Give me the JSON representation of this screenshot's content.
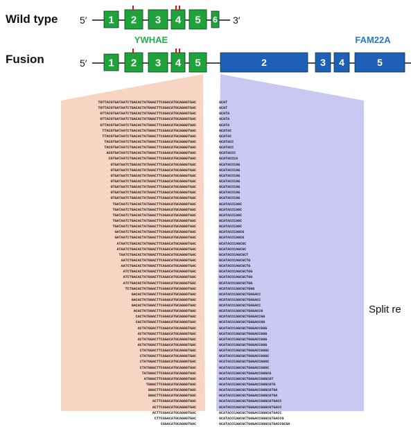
{
  "rows": {
    "wild_type": {
      "label": "Wild type",
      "five_prime": "5′",
      "three_prime": "3′",
      "exons": [
        "1",
        "2",
        "3",
        "4",
        "5",
        "6"
      ]
    },
    "fusion": {
      "label": "Fusion",
      "five_prime": "5′",
      "ywhae_exons": [
        "1",
        "2",
        "3",
        "4",
        "5"
      ],
      "fam22a_exons": [
        "2",
        "3",
        "4",
        "5"
      ]
    }
  },
  "genes": {
    "left": "YWHAE",
    "right": "FAM22A"
  },
  "side_label": "Split re",
  "colors": {
    "exon_green": "#1fa23a",
    "exon_blue": "#1f5fb8",
    "mutation_red": "#e0101a",
    "left_fan": "#f7d5c2",
    "right_fan": "#c9c8f3",
    "gene_green_text": "#24b04a",
    "gene_blue_text": "#2a78c8"
  },
  "reads": [
    [
      "TGTTACGTGATAATCTGACACTATGGACTTCAGACATGCAGGGTGAC",
      "GCAT"
    ],
    [
      "TGTTACGTGATAATCTGACACTATGGACTTCAGACATGCAGGGTGAC",
      "GCAT"
    ],
    [
      "GTTACGTGATAATCTGACACTATGGACTTCAGACATGCAGGGTGAC",
      "GCATA"
    ],
    [
      "GTTACGTGATAATCTGACACTATGGACTTCAGACATGCAGGGTGAC",
      "GCATA"
    ],
    [
      "GTTACGTGATAATCTGACACTATGGACTTCAGACATGCAGGGTGAC",
      "GCATA"
    ],
    [
      "TTACGTGATAATCTGACACTATGGACTTCAGACATGCAGGGTGAC",
      "GCATAC"
    ],
    [
      "TTACGTGATAATCTGACACTATGGACTTCAGACATGCAGGGTGAC",
      "GCATAC"
    ],
    [
      "TACGTGATAATCTGACACTATGGACTTCAGACATGCAGGGTGAC",
      "GCATACC"
    ],
    [
      "TACGTGATAATCTGACACTATGGACTTCAGACATGCAGGGTGAC",
      "GCATACC"
    ],
    [
      "ACGTGATAATCTGACACTATGGACTTCAGACATGCAGGGTGAC",
      "GCATACCC"
    ],
    [
      "CGTGATAATCTGACACTATGGACTTCAGACATGCAGGGTGAC",
      "GCATACCCA"
    ],
    [
      "GTGATAATCTGACACTATGGACTTCAGACATGCAGGGTGAC",
      "GCATACCCAG"
    ],
    [
      "GTGATAATCTGACACTATGGACTTCAGACATGCAGGGTGAC",
      "GCATACCCAG"
    ],
    [
      "GTGATAATCTGACACTATGGACTTCAGACATGCAGGGTGAC",
      "GCATACCCAG"
    ],
    [
      "GTGATAATCTGACACTATGGACTTCAGACATGCAGGGTGAC",
      "GCATACCCAG"
    ],
    [
      "GTGATAATCTGACACTATGGACTTCAGACATGCAGGGTGAC",
      "GCATACCCAG"
    ],
    [
      "GTGATAATCTGACACTATGGACTTCAGACATGCAGGGTGAC",
      "GCATACCCAG"
    ],
    [
      "GTGATAATCTGACACTATGGACTTCAGACATGCAGGGTGAC",
      "GCATACCCAG"
    ],
    [
      "TGATAATCTGACACTATGGACTTCAGACATGCAGGGTGAC",
      "GCATACCCAGC"
    ],
    [
      "TGATAATCTGACACTATGGACTTCAGACATGCAGGGTGAC",
      "GCATACCCAGC"
    ],
    [
      "TGATAATCTGACACTATGGACTTCAGACATGCAGGGTGAC",
      "GCATACCCAGC"
    ],
    [
      "TGATAATCTGACACTATGGACTTCAGACATGCAGGGTGAC",
      "GCATACCCAGC"
    ],
    [
      "TGATAATCTGACACTATGGACTTCAGACATGCAGGGTGAC",
      "GCATACCCAGC"
    ],
    [
      "GATAATCTGACACTATGGACTTCAGACATGCAGGGTGAC",
      "GCATACCCAGCG"
    ],
    [
      "GATAATCTGACACTATGGACTTCAGACATGCAGGGTGAC",
      "GCATACCCAGCG"
    ],
    [
      "ATAATCTGACACTATGGACTTCAGACATGCAGGGTGAC",
      "GCATACCCAGCGC"
    ],
    [
      "ATAATCTGACACTATGGACTTCAGACATGCAGGGTGAC",
      "GCATACCCAGCGC"
    ],
    [
      "TAATCTGACACTATGGACTTCAGACATGCAGGGTGAC",
      "GCATACCCAGCGCT"
    ],
    [
      "AATCTGACACTATGGACTTCAGACATGCAGGGTGAC",
      "GCATACCCAGCGCTG"
    ],
    [
      "AATCTGACACTATGGACTTCAGACATGCAGGGTGAC",
      "GCATACCCAGCGCTG"
    ],
    [
      "ATCTGACACTATGGACTTCAGACATGCAGGGTGAC",
      "GCATACCCAGCGCTGG"
    ],
    [
      "ATCTGACACTATGGACTTCAGACATGCAGGGTGAC",
      "GCATACCCAGCGCTGG"
    ],
    [
      "ATCTGACACTATGGACTTCAGACATGCAGGGTGAC",
      "GCATACCCAGCGCTGG"
    ],
    [
      "TCTGACACTATGGACTTCAGACATGCAGGGTGAC",
      "GCATACCCAGCGCTGGG"
    ],
    [
      "GACACTATGGACTTCAGACATGCAGGGTGAC",
      "GCATACCCAGCGCTGGGACC"
    ],
    [
      "GACACTATGGACTTCAGACATGCAGGGTGAC",
      "GCATACCCAGCGCTGGGACC"
    ],
    [
      "GACACTATGGACTTCAGACATGCAGGGTGAC",
      "GCATACCCAGCGCTGGGACC"
    ],
    [
      "ACACTATGGACTTCAGACATGCAGGGTGAC",
      "GCATACCCAGCGCTGGGACCG"
    ],
    [
      "CACTATGGACTTCAGACATGCAGGGTGAC",
      "GCATACCCAGCGCTGGGACCGG"
    ],
    [
      "CACTATGGACTTCAGACATGCAGGGTGAC",
      "GCATACCCAGCGCTGGGACCGG"
    ],
    [
      "ACTATGGACTTCAGACATGCAGGGTGAC",
      "GCATACCCAGCGCTGGGACCGGG"
    ],
    [
      "ACTATGGACTTCAGACATGCAGGGTGAC",
      "GCATACCCAGCGCTGGGACCGGG"
    ],
    [
      "ACTATGGACTTCAGACATGCAGGGTGAC",
      "GCATACCCAGCGCTGGGACCGGG"
    ],
    [
      "ACTATGGACTTCAGACATGCAGGGTGAC",
      "GCATACCCAGCGCTGGGACCGGG"
    ],
    [
      "CTATGGACTTCAGACATGCAGGGTGAC",
      "GCATACCCAGCGCTGGGACCGGGC"
    ],
    [
      "CTATGGACTTCAGACATGCAGGGTGAC",
      "GCATACCCAGCGCTGGGACCGGGC"
    ],
    [
      "CTATGGACTTCAGACATGCAGGGTGAC",
      "GCATACCCAGCGCTGGGACCGGGC"
    ],
    [
      "CTATGGACTTCAGACATGCAGGGTGAC",
      "GCATACCCAGCGCTGGGACCGGGC"
    ],
    [
      "TATGGACTTCAGACATGCAGGGTGAC",
      "GCATACCCAGCGCTGGGACCGGGCG"
    ],
    [
      "ATGGACTTCAGACATGCAGGGTGAC",
      "GCATACCCAGCGCTGGGACCGGGCGT"
    ],
    [
      "TGGACTTCAGACATGCAGGGTGAC",
      "GCATACCCAGCGCTGGGACCGGGCGTG"
    ],
    [
      "GGACTTCAGACATGCAGGGTGAC",
      "GCATACCCAGCGCTGGGACCGGGCGTGA"
    ],
    [
      "GGACTTCAGACATGCAGGGTGAC",
      "GCATACCCAGCGCTGGGACCGGGCGTGA"
    ],
    [
      "ACTTCAGACATGCAGGGTGAC",
      "GCATACCCAGCGCTGGGACCGGGCGTGACC"
    ],
    [
      "ACTTCAGACATGCAGGGTGAC",
      "GCATACCCAGCGCTGGGACCGGGCGTGACC"
    ],
    [
      "ACTTCAGACATGCAGGGTGAC",
      "GCATACCCAGCGCTGGGACCGGGCGTGACC"
    ],
    [
      "CTTCAGACATGCAGGGTGAC",
      "GCATACCCAGCGCTGGGACCGGGCGTGACCG"
    ],
    [
      "CAGACATGCAGGGTGAC",
      "GCATACCCAGCGCTGGGACCGGGCGTGACCGCGA"
    ]
  ]
}
